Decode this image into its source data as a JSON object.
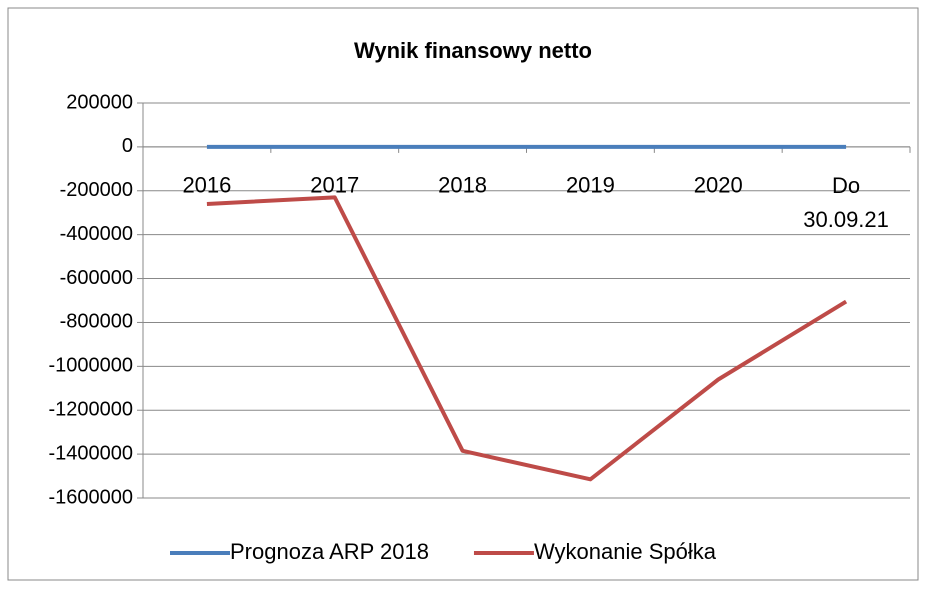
{
  "chart_data": {
    "type": "line",
    "title": "Wynik finansowy netto",
    "categories": [
      "2016",
      "2017",
      "2018",
      "2019",
      "2020",
      "Do 30.09.21"
    ],
    "series": [
      {
        "name": "Prognoza ARP 2018",
        "color": "#4a7ebb",
        "values": [
          0,
          0,
          0,
          0,
          0,
          0
        ]
      },
      {
        "name": "Wykonanie Spółka",
        "color": "#be4b48",
        "values": [
          -260000,
          -230000,
          -1385000,
          -1515000,
          -1060000,
          -705000
        ]
      }
    ],
    "ylim": [
      -1600000,
      200000
    ],
    "yticks": [
      -1600000,
      -1400000,
      -1200000,
      -1000000,
      -800000,
      -600000,
      -400000,
      -200000,
      0,
      200000
    ],
    "grid": true,
    "legend": "bottom"
  }
}
